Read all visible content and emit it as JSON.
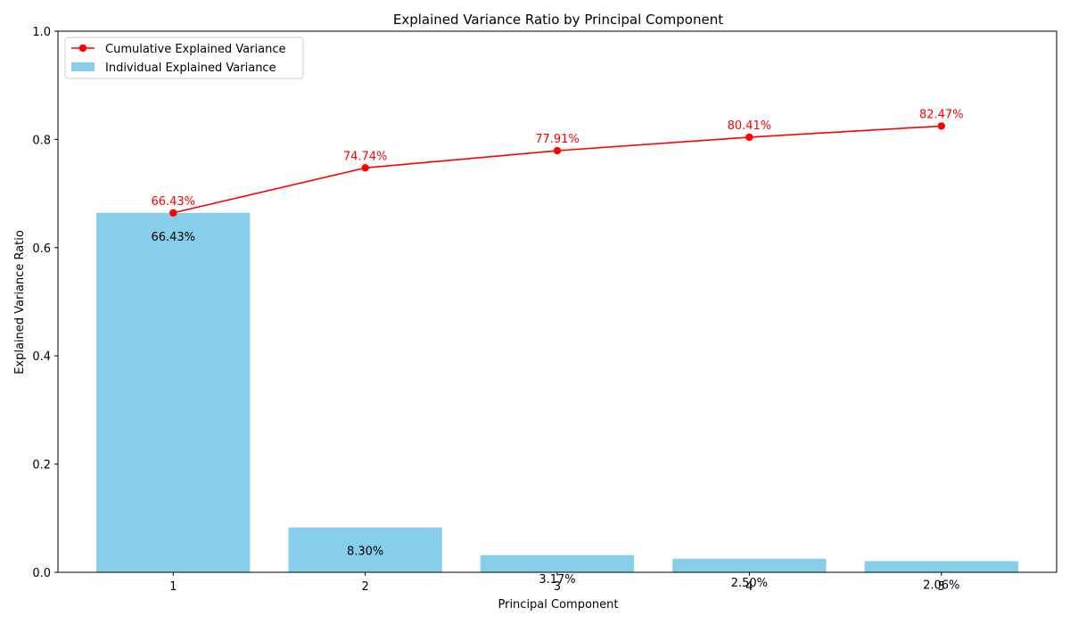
{
  "chart_data": {
    "type": "bar",
    "title": "Explained Variance Ratio by Principal Component",
    "xlabel": "Principal Component",
    "ylabel": "Explained Variance Ratio",
    "categories": [
      "1",
      "2",
      "3",
      "4",
      "5"
    ],
    "ylim": [
      0,
      1.0
    ],
    "yticks": [
      "0.0",
      "0.2",
      "0.4",
      "0.6",
      "0.8",
      "1.0"
    ],
    "grid": false,
    "legend_position": "top-left",
    "series": [
      {
        "name": "Individual Explained Variance",
        "type": "bar",
        "color": "#87CEEB",
        "values": [
          0.6643,
          0.083,
          0.0317,
          0.025,
          0.0206
        ],
        "labels": [
          "66.43%",
          "8.30%",
          "3.17%",
          "2.50%",
          "2.06%"
        ]
      },
      {
        "name": "Cumulative Explained Variance",
        "type": "line",
        "color": "#ff0000",
        "values": [
          0.6643,
          0.7474,
          0.7791,
          0.8041,
          0.8247
        ],
        "labels": [
          "66.43%",
          "74.74%",
          "77.91%",
          "80.41%",
          "82.47%"
        ]
      }
    ]
  }
}
